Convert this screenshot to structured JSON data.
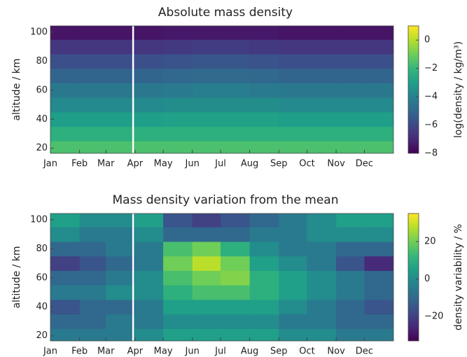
{
  "chart_data": [
    {
      "type": "heatmap",
      "title": "Absolute mass density",
      "ylabel": "altitude / km",
      "colorbar_label": "log(density / kg/m³)",
      "colormap": "viridis",
      "x": [
        1,
        32,
        60,
        91,
        121,
        152,
        182,
        213,
        244,
        274,
        305,
        335
      ],
      "y": [
        20,
        30,
        40,
        50,
        60,
        70,
        80,
        90,
        100
      ],
      "values": [
        [
          -1.6,
          -1.6,
          -1.6,
          -1.6,
          -1.6,
          -1.6,
          -1.6,
          -1.6,
          -1.6,
          -1.6,
          -1.6,
          -1.6
        ],
        [
          -2.3,
          -2.3,
          -2.3,
          -2.3,
          -2.3,
          -2.3,
          -2.3,
          -2.3,
          -2.3,
          -2.3,
          -2.3,
          -2.3
        ],
        [
          -3.0,
          -3.0,
          -3.0,
          -3.0,
          -2.9,
          -2.9,
          -2.9,
          -2.9,
          -3.0,
          -3.0,
          -3.0,
          -3.0
        ],
        [
          -3.7,
          -3.7,
          -3.7,
          -3.7,
          -3.6,
          -3.6,
          -3.6,
          -3.6,
          -3.7,
          -3.7,
          -3.7,
          -3.7
        ],
        [
          -4.4,
          -4.4,
          -4.4,
          -4.4,
          -4.3,
          -4.2,
          -4.2,
          -4.3,
          -4.4,
          -4.4,
          -4.4,
          -4.4
        ],
        [
          -5.1,
          -5.1,
          -5.1,
          -5.1,
          -5.0,
          -4.9,
          -4.9,
          -5.0,
          -5.1,
          -5.1,
          -5.1,
          -5.1
        ],
        [
          -5.8,
          -5.8,
          -5.8,
          -5.8,
          -5.7,
          -5.6,
          -5.6,
          -5.7,
          -5.8,
          -5.8,
          -5.8,
          -5.8
        ],
        [
          -6.6,
          -6.6,
          -6.6,
          -6.6,
          -6.5,
          -6.4,
          -6.4,
          -6.5,
          -6.6,
          -6.6,
          -6.6,
          -6.6
        ],
        [
          -7.5,
          -7.5,
          -7.5,
          -7.5,
          -7.4,
          -7.4,
          -7.4,
          -7.4,
          -7.5,
          -7.5,
          -7.5,
          -7.5
        ]
      ],
      "xlim": [
        1,
        366
      ],
      "xticks": [
        {
          "value": 1,
          "label": "Jan"
        },
        {
          "value": 32,
          "label": "Feb"
        },
        {
          "value": 60,
          "label": "Mar"
        },
        {
          "value": 91,
          "label": "Apr"
        },
        {
          "value": 121,
          "label": "May"
        },
        {
          "value": 152,
          "label": "Jun"
        },
        {
          "value": 182,
          "label": "Jul"
        },
        {
          "value": 213,
          "label": "Aug"
        },
        {
          "value": 244,
          "label": "Sep"
        },
        {
          "value": 274,
          "label": "Oct"
        },
        {
          "value": 305,
          "label": "Nov"
        },
        {
          "value": 335,
          "label": "Dec"
        }
      ],
      "ylim": [
        16.5,
        104.3
      ],
      "yticks": [
        20,
        40,
        60,
        80,
        100
      ],
      "clim": [
        -8,
        1
      ],
      "cticks": [
        {
          "value": 0,
          "label": "0"
        },
        {
          "value": -2,
          "label": "−2"
        },
        {
          "value": -4,
          "label": "−4"
        },
        {
          "value": -6,
          "label": "−6"
        },
        {
          "value": -8,
          "label": "−8"
        }
      ],
      "vline_x": 89,
      "vline_color": "#ffffff"
    },
    {
      "type": "heatmap",
      "title": "Mass density variation from the mean",
      "ylabel": "altitude / km",
      "colorbar_label": "density variability / %",
      "colormap": "viridis",
      "x": [
        1,
        32,
        60,
        91,
        121,
        152,
        182,
        213,
        244,
        274,
        305,
        335
      ],
      "y": [
        20,
        30,
        40,
        50,
        60,
        70,
        80,
        90,
        100
      ],
      "values": [
        [
          -5,
          -5,
          -5,
          0,
          5,
          5,
          5,
          5,
          0,
          0,
          -5,
          -5
        ],
        [
          -10,
          -10,
          -5,
          -5,
          0,
          0,
          0,
          0,
          -5,
          -5,
          -10,
          -10
        ],
        [
          -15,
          -10,
          -10,
          -5,
          5,
          5,
          5,
          5,
          0,
          -5,
          -10,
          -15
        ],
        [
          -5,
          -5,
          0,
          0,
          10,
          15,
          15,
          10,
          5,
          0,
          -5,
          -10
        ],
        [
          -10,
          -10,
          -5,
          0,
          15,
          20,
          22,
          10,
          5,
          0,
          -5,
          -10
        ],
        [
          -20,
          -15,
          -10,
          -5,
          20,
          28,
          20,
          5,
          0,
          -5,
          -15,
          -25
        ],
        [
          -10,
          -10,
          -5,
          -5,
          15,
          20,
          10,
          0,
          -5,
          -5,
          -10,
          -10
        ],
        [
          0,
          -5,
          -5,
          0,
          -10,
          -10,
          -10,
          -5,
          -5,
          0,
          0,
          0
        ],
        [
          5,
          0,
          0,
          5,
          -15,
          -20,
          -15,
          -10,
          -5,
          0,
          5,
          5
        ]
      ],
      "xlim": [
        1,
        366
      ],
      "xticks": [
        {
          "value": 1,
          "label": "Jan"
        },
        {
          "value": 32,
          "label": "Feb"
        },
        {
          "value": 60,
          "label": "Mar"
        },
        {
          "value": 91,
          "label": "Apr"
        },
        {
          "value": 121,
          "label": "May"
        },
        {
          "value": 152,
          "label": "Jun"
        },
        {
          "value": 182,
          "label": "Jul"
        },
        {
          "value": 213,
          "label": "Aug"
        },
        {
          "value": 244,
          "label": "Sep"
        },
        {
          "value": 274,
          "label": "Oct"
        },
        {
          "value": 305,
          "label": "Nov"
        },
        {
          "value": 335,
          "label": "Dec"
        }
      ],
      "ylim": [
        16.5,
        104.3
      ],
      "yticks": [
        20,
        40,
        60,
        80,
        100
      ],
      "clim": [
        -33,
        35
      ],
      "cticks": [
        {
          "value": 20,
          "label": "20"
        },
        {
          "value": 0,
          "label": "0"
        },
        {
          "value": -20,
          "label": "−20"
        }
      ],
      "vline_x": 89,
      "vline_color": "#ffffff"
    }
  ]
}
